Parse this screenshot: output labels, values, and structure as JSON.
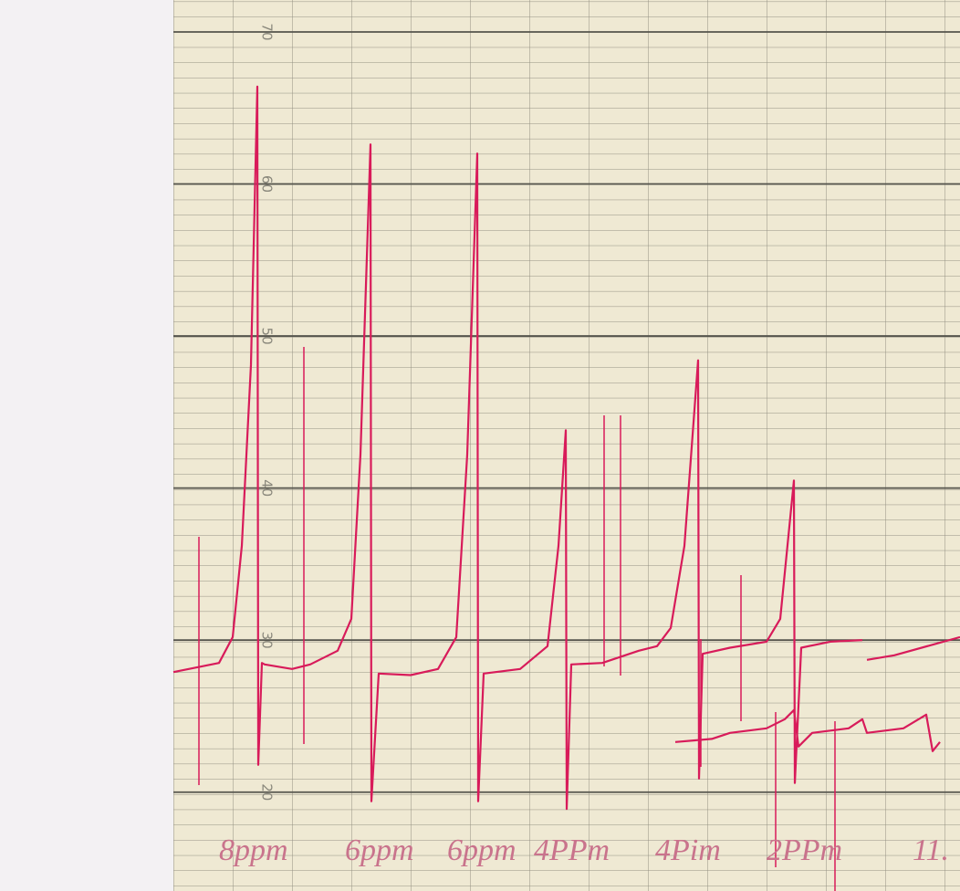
{
  "chart_data": {
    "type": "line",
    "ylim": [
      13.5,
      72.1
    ],
    "yticks": [
      20,
      30,
      40,
      50,
      60,
      70
    ],
    "xlim": [
      0,
      862
    ],
    "grid": true,
    "series": [
      {
        "color": "#d81b5a",
        "x": [
          0,
          50,
          65,
          75,
          85,
          92,
          93,
          97,
          100,
          130,
          150,
          180,
          195,
          205,
          216,
          217,
          225,
          260,
          290,
          310,
          322,
          333,
          334,
          340,
          380,
          410,
          422,
          430,
          431,
          436,
          470,
          510,
          530,
          545,
          560,
          575,
          576,
          580,
          610,
          650,
          665,
          680,
          681,
          688,
          720,
          755,
          756,
          760,
          790,
          862
        ],
        "values": [
          27.9,
          28.5,
          30.2,
          36.2,
          48.1,
          66.4,
          21.8,
          28.5,
          28.4,
          28.1,
          28.4,
          29.3,
          31.4,
          42.2,
          62.6,
          19.4,
          27.8,
          27.7,
          28.1,
          30.2,
          42.2,
          62.0,
          19.4,
          27.8,
          28.1,
          29.6,
          36.2,
          43.8,
          18.9,
          28.4,
          28.5,
          29.3,
          29.6,
          30.8,
          36.2,
          48.4,
          20.9,
          29.1,
          29.5,
          29.9,
          31.4,
          40.5,
          20.6,
          29.5,
          29.9,
          30.0,
          null,
          28.7,
          29.0,
          30.2
        ]
      },
      {
        "color": "#d81b5a",
        "x": [
          550,
          590,
          610,
          650,
          670,
          680,
          685,
          700,
          740,
          755,
          760,
          800,
          825,
          832,
          840
        ],
        "values": [
          23.3,
          23.5,
          23.9,
          24.2,
          24.8,
          25.4,
          23.0,
          23.9,
          24.2,
          24.8,
          23.9,
          24.2,
          25.1,
          22.7,
          23.3
        ]
      }
    ],
    "annotations": [
      "8ppm",
      "6ppm",
      "6ppm",
      "4PPm",
      "4Pim",
      "2PPm",
      "11."
    ]
  }
}
